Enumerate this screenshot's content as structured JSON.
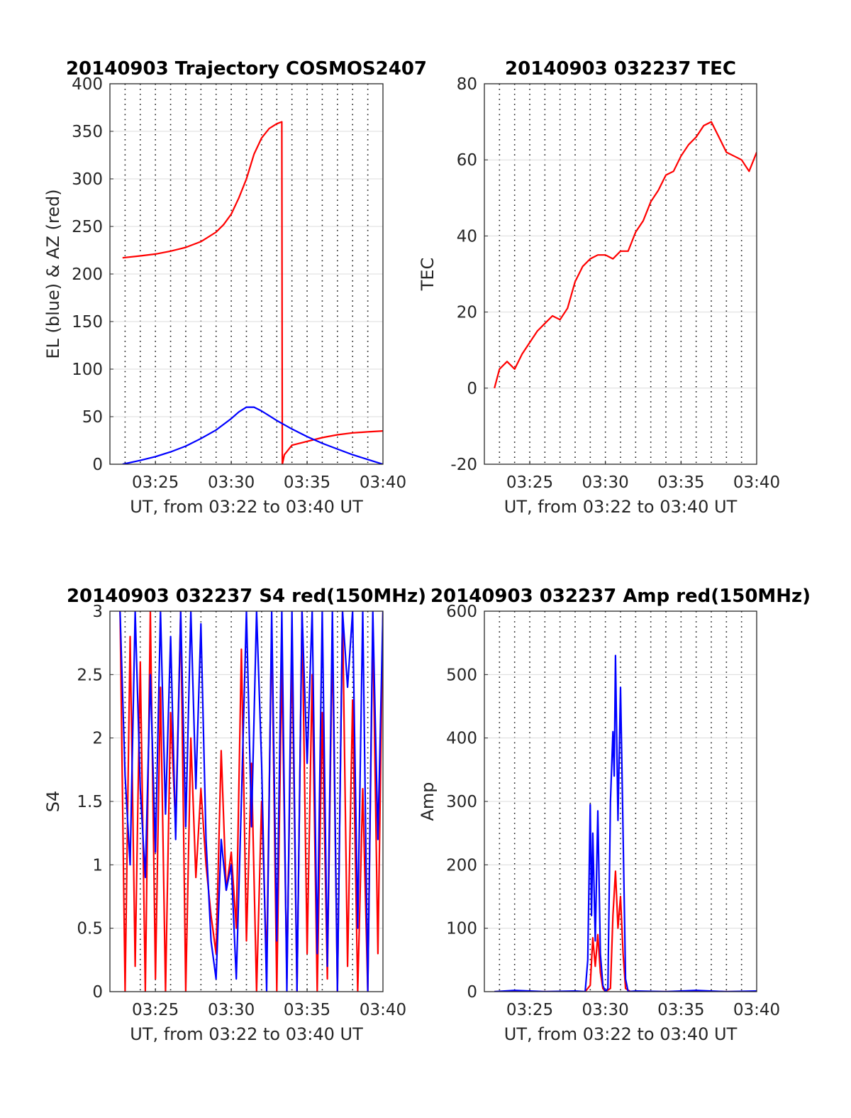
{
  "chart_data": [
    {
      "type": "line",
      "title": "20140903 Trajectory COSMOS2407",
      "xlabel": "UT, from 03:22 to 03:40 UT",
      "ylabel": "EL (blue) & AZ (red)",
      "xlim": [
        "03:22",
        "03:40"
      ],
      "ylim": [
        0,
        400
      ],
      "xticks": [
        "03:25",
        "03:30",
        "03:35",
        "03:40"
      ],
      "yticks": [
        0,
        50,
        100,
        150,
        200,
        250,
        300,
        350,
        400
      ],
      "grid": true,
      "series": [
        {
          "color": "#ff0000",
          "x": [
            "03:22:50",
            "03:24:00",
            "03:25:00",
            "03:26:00",
            "03:27:00",
            "03:28:00",
            "03:29:00",
            "03:29:30",
            "03:30:00",
            "03:30:30",
            "03:31:00",
            "03:31:30",
            "03:32:00",
            "03:32:30",
            "03:33:00",
            "03:33:20",
            "03:33:22",
            "03:33:30",
            "03:34:00",
            "03:35:00",
            "03:36:00",
            "03:37:00",
            "03:38:00",
            "03:39:00",
            "03:40:00"
          ],
          "values": [
            217,
            219,
            221,
            224,
            228,
            234,
            244,
            252,
            263,
            280,
            300,
            326,
            343,
            353,
            358,
            360,
            0,
            10,
            20,
            24,
            28,
            31,
            33,
            34,
            35
          ]
        },
        {
          "color": "#0000ff",
          "x": [
            "03:22:50",
            "03:24:00",
            "03:25:00",
            "03:26:00",
            "03:27:00",
            "03:28:00",
            "03:29:00",
            "03:30:00",
            "03:30:30",
            "03:31:00",
            "03:31:30",
            "03:32:00",
            "03:33:00",
            "03:34:00",
            "03:35:00",
            "03:36:00",
            "03:37:00",
            "03:38:00",
            "03:39:00",
            "03:40:00"
          ],
          "values": [
            0,
            4,
            8,
            13,
            19,
            27,
            36,
            48,
            55,
            60,
            60,
            56,
            46,
            37,
            29,
            22,
            16,
            10,
            5,
            0
          ]
        }
      ]
    },
    {
      "type": "line",
      "title": "20140903 032237 TEC",
      "xlabel": "UT, from 03:22 to 03:40 UT",
      "ylabel": "TEC",
      "xlim": [
        "03:22",
        "03:40"
      ],
      "ylim": [
        -20,
        80
      ],
      "xticks": [
        "03:25",
        "03:30",
        "03:35",
        "03:40"
      ],
      "yticks": [
        -20,
        0,
        20,
        40,
        60,
        80
      ],
      "grid": true,
      "series": [
        {
          "color": "#ff0000",
          "x": [
            "03:22:40",
            "03:23:00",
            "03:23:30",
            "03:24:00",
            "03:24:30",
            "03:25:00",
            "03:25:30",
            "03:26:00",
            "03:26:30",
            "03:27:00",
            "03:27:30",
            "03:28:00",
            "03:28:30",
            "03:29:00",
            "03:29:30",
            "03:30:00",
            "03:30:30",
            "03:31:00",
            "03:31:30",
            "03:32:00",
            "03:32:30",
            "03:33:00",
            "03:33:30",
            "03:34:00",
            "03:34:30",
            "03:35:00",
            "03:35:30",
            "03:36:00",
            "03:36:30",
            "03:37:00",
            "03:37:30",
            "03:38:00",
            "03:38:30",
            "03:39:00",
            "03:39:30",
            "03:40:00"
          ],
          "values": [
            0,
            5,
            7,
            5,
            9,
            12,
            15,
            17,
            19,
            18,
            21,
            28,
            32,
            34,
            35,
            35,
            34,
            36,
            36,
            41,
            44,
            49,
            52,
            56,
            57,
            61,
            64,
            66,
            69,
            70,
            66,
            62,
            61,
            60,
            57,
            62
          ]
        }
      ]
    },
    {
      "type": "line",
      "title": "20140903 032237 S4 red(150MHz)",
      "xlabel": "UT, from 03:22 to 03:40 UT",
      "ylabel": "S4",
      "xlim": [
        "03:22",
        "03:40"
      ],
      "ylim": [
        0,
        3
      ],
      "xticks": [
        "03:25",
        "03:30",
        "03:35",
        "03:40"
      ],
      "yticks": [
        0,
        0.5,
        1,
        1.5,
        2,
        2.5,
        3
      ],
      "grid": true,
      "series": [
        {
          "color": "#ff0000",
          "x": [
            "03:22:40",
            "03:23:00",
            "03:23:20",
            "03:23:40",
            "03:24:00",
            "03:24:20",
            "03:24:40",
            "03:25:00",
            "03:25:20",
            "03:25:40",
            "03:26:00",
            "03:26:20",
            "03:26:40",
            "03:27:00",
            "03:27:20",
            "03:27:40",
            "03:28:00",
            "03:28:20",
            "03:28:40",
            "03:29:00",
            "03:29:20",
            "03:29:40",
            "03:30:00",
            "03:30:20",
            "03:30:40",
            "03:31:00",
            "03:31:20",
            "03:31:40",
            "03:32:00",
            "03:32:20",
            "03:32:40",
            "03:33:00",
            "03:33:20",
            "03:33:40",
            "03:34:00",
            "03:34:20",
            "03:34:40",
            "03:35:00",
            "03:35:20",
            "03:35:40",
            "03:36:00",
            "03:36:20",
            "03:36:40",
            "03:37:00",
            "03:37:20",
            "03:37:40",
            "03:38:00",
            "03:38:20",
            "03:38:40",
            "03:39:00",
            "03:39:20",
            "03:39:40",
            "03:40:00"
          ],
          "values": [
            3,
            0,
            2.8,
            0.2,
            2.6,
            0,
            3,
            0.1,
            2.4,
            0,
            2.2,
            1.3,
            3,
            0,
            2,
            0.9,
            1.6,
            1,
            0.6,
            0.3,
            1.9,
            0.8,
            1.1,
            0.5,
            2.7,
            0.4,
            1.8,
            0,
            1.5,
            0.2,
            2.9,
            0,
            2.6,
            0.1,
            2.7,
            0,
            3,
            0.3,
            2.5,
            0,
            2.2,
            0.1,
            2.8,
            0,
            3,
            0.2,
            2.3,
            0,
            1.6,
            0,
            2.9,
            0.3,
            3
          ]
        },
        {
          "color": "#0000ff",
          "x": [
            "03:22:40",
            "03:23:00",
            "03:23:20",
            "03:23:40",
            "03:24:00",
            "03:24:20",
            "03:24:40",
            "03:25:00",
            "03:25:20",
            "03:25:40",
            "03:26:00",
            "03:26:20",
            "03:26:40",
            "03:27:00",
            "03:27:20",
            "03:27:40",
            "03:28:00",
            "03:28:20",
            "03:28:40",
            "03:29:00",
            "03:29:20",
            "03:29:40",
            "03:30:00",
            "03:30:20",
            "03:30:40",
            "03:31:00",
            "03:31:20",
            "03:31:40",
            "03:32:00",
            "03:32:20",
            "03:32:40",
            "03:33:00",
            "03:33:20",
            "03:33:40",
            "03:34:00",
            "03:34:20",
            "03:34:40",
            "03:35:00",
            "03:35:20",
            "03:35:40",
            "03:36:00",
            "03:36:20",
            "03:36:40",
            "03:37:00",
            "03:37:20",
            "03:37:40",
            "03:38:00",
            "03:38:20",
            "03:38:40",
            "03:39:00",
            "03:39:20",
            "03:39:40",
            "03:40:00"
          ],
          "values": [
            3,
            1.7,
            1.0,
            3,
            1.6,
            0.9,
            2.5,
            1.1,
            3,
            1.4,
            2.8,
            1.2,
            3,
            1.3,
            3,
            1.6,
            2.9,
            1.2,
            0.4,
            0.1,
            1.2,
            0.8,
            1.0,
            0.1,
            1.5,
            3,
            1.3,
            3,
            1.8,
            0,
            3,
            0.4,
            3,
            0,
            3,
            0,
            3,
            1.8,
            3,
            0.3,
            3,
            0.2,
            3,
            0,
            3,
            2.4,
            3,
            0.5,
            3,
            0,
            3,
            1.2,
            3
          ]
        }
      ]
    },
    {
      "type": "line",
      "title": "20140903 032237 Amp red(150MHz)",
      "xlabel": "UT, from 03:22 to 03:40 UT",
      "ylabel": "Amp",
      "xlim": [
        "03:22",
        "03:40"
      ],
      "ylim": [
        0,
        600
      ],
      "xticks": [
        "03:25",
        "03:30",
        "03:35",
        "03:40"
      ],
      "yticks": [
        0,
        100,
        200,
        300,
        400,
        500,
        600
      ],
      "grid": true,
      "series": [
        {
          "color": "#ff0000",
          "x": [
            "03:22:40",
            "03:27:00",
            "03:28:40",
            "03:29:00",
            "03:29:10",
            "03:29:20",
            "03:29:30",
            "03:29:40",
            "03:29:50",
            "03:30:00",
            "03:30:20",
            "03:30:30",
            "03:30:40",
            "03:30:50",
            "03:31:00",
            "03:31:10",
            "03:31:20",
            "03:31:40",
            "03:33:00",
            "03:36:00",
            "03:40:00"
          ],
          "values": [
            0,
            0,
            0,
            10,
            85,
            40,
            90,
            30,
            5,
            0,
            5,
            120,
            190,
            100,
            150,
            60,
            5,
            0,
            0,
            0,
            0
          ]
        },
        {
          "color": "#0000ff",
          "x": [
            "03:22:40",
            "03:24:00",
            "03:26:00",
            "03:28:00",
            "03:28:40",
            "03:28:50",
            "03:29:00",
            "03:29:05",
            "03:29:10",
            "03:29:20",
            "03:29:30",
            "03:29:40",
            "03:29:50",
            "03:30:00",
            "03:30:10",
            "03:30:20",
            "03:30:30",
            "03:30:35",
            "03:30:40",
            "03:30:50",
            "03:31:00",
            "03:31:10",
            "03:31:20",
            "03:31:30",
            "03:32:00",
            "03:34:00",
            "03:36:00",
            "03:38:00",
            "03:40:00"
          ],
          "values": [
            0,
            2,
            0,
            1,
            0,
            50,
            295,
            120,
            250,
            80,
            285,
            60,
            10,
            0,
            5,
            300,
            410,
            340,
            530,
            270,
            480,
            250,
            20,
            0,
            1,
            0,
            2,
            0,
            1
          ]
        }
      ]
    }
  ]
}
